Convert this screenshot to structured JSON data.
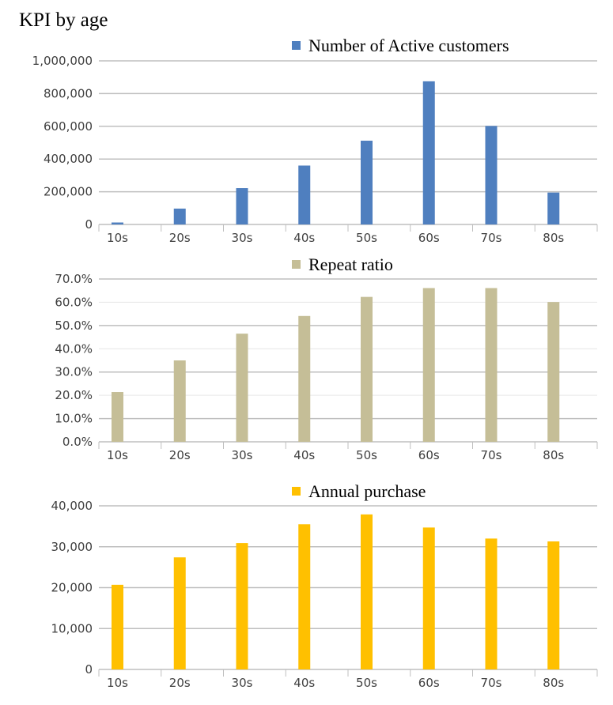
{
  "title": "KPI by age",
  "chart_data": [
    {
      "type": "bar",
      "categories": [
        "10s",
        "20s",
        "30s",
        "40s",
        "50s",
        "60s",
        "70s",
        "80s"
      ],
      "series": [
        {
          "name": "Number of Active customers",
          "color": "#4F7FBF",
          "values": [
            12000,
            97000,
            222000,
            360000,
            512000,
            875000,
            602000,
            195000
          ]
        }
      ],
      "ylim": [
        0,
        1000000
      ],
      "yticks": [
        "0",
        "200,000",
        "400,000",
        "600,000",
        "800,000",
        "1,000,000"
      ],
      "grid": true,
      "legend": "top-center"
    },
    {
      "type": "bar",
      "categories": [
        "10s",
        "20s",
        "30s",
        "40s",
        "50s",
        "60s",
        "70s",
        "80s"
      ],
      "series": [
        {
          "name": "Repeat ratio",
          "color": "#C5BE97",
          "values": [
            0.214,
            0.35,
            0.465,
            0.541,
            0.623,
            0.661,
            0.661,
            0.601
          ]
        }
      ],
      "ylim": [
        0,
        0.7
      ],
      "yticks": [
        "0.0%",
        "10.0%",
        "20.0%",
        "30.0%",
        "40.0%",
        "50.0%",
        "60.0%",
        "70.0%"
      ],
      "grid": true,
      "legend": "top-center"
    },
    {
      "type": "bar",
      "categories": [
        "10s",
        "20s",
        "30s",
        "40s",
        "50s",
        "60s",
        "70s",
        "80s"
      ],
      "series": [
        {
          "name": "Annual purchase",
          "color": "#FFC000",
          "values": [
            20700,
            27400,
            30900,
            35500,
            37900,
            34700,
            32000,
            31300
          ]
        }
      ],
      "ylim": [
        0,
        40000
      ],
      "yticks": [
        "0",
        "10,000",
        "20,000",
        "30,000",
        "40,000"
      ],
      "grid": true,
      "legend": "top-center"
    }
  ]
}
